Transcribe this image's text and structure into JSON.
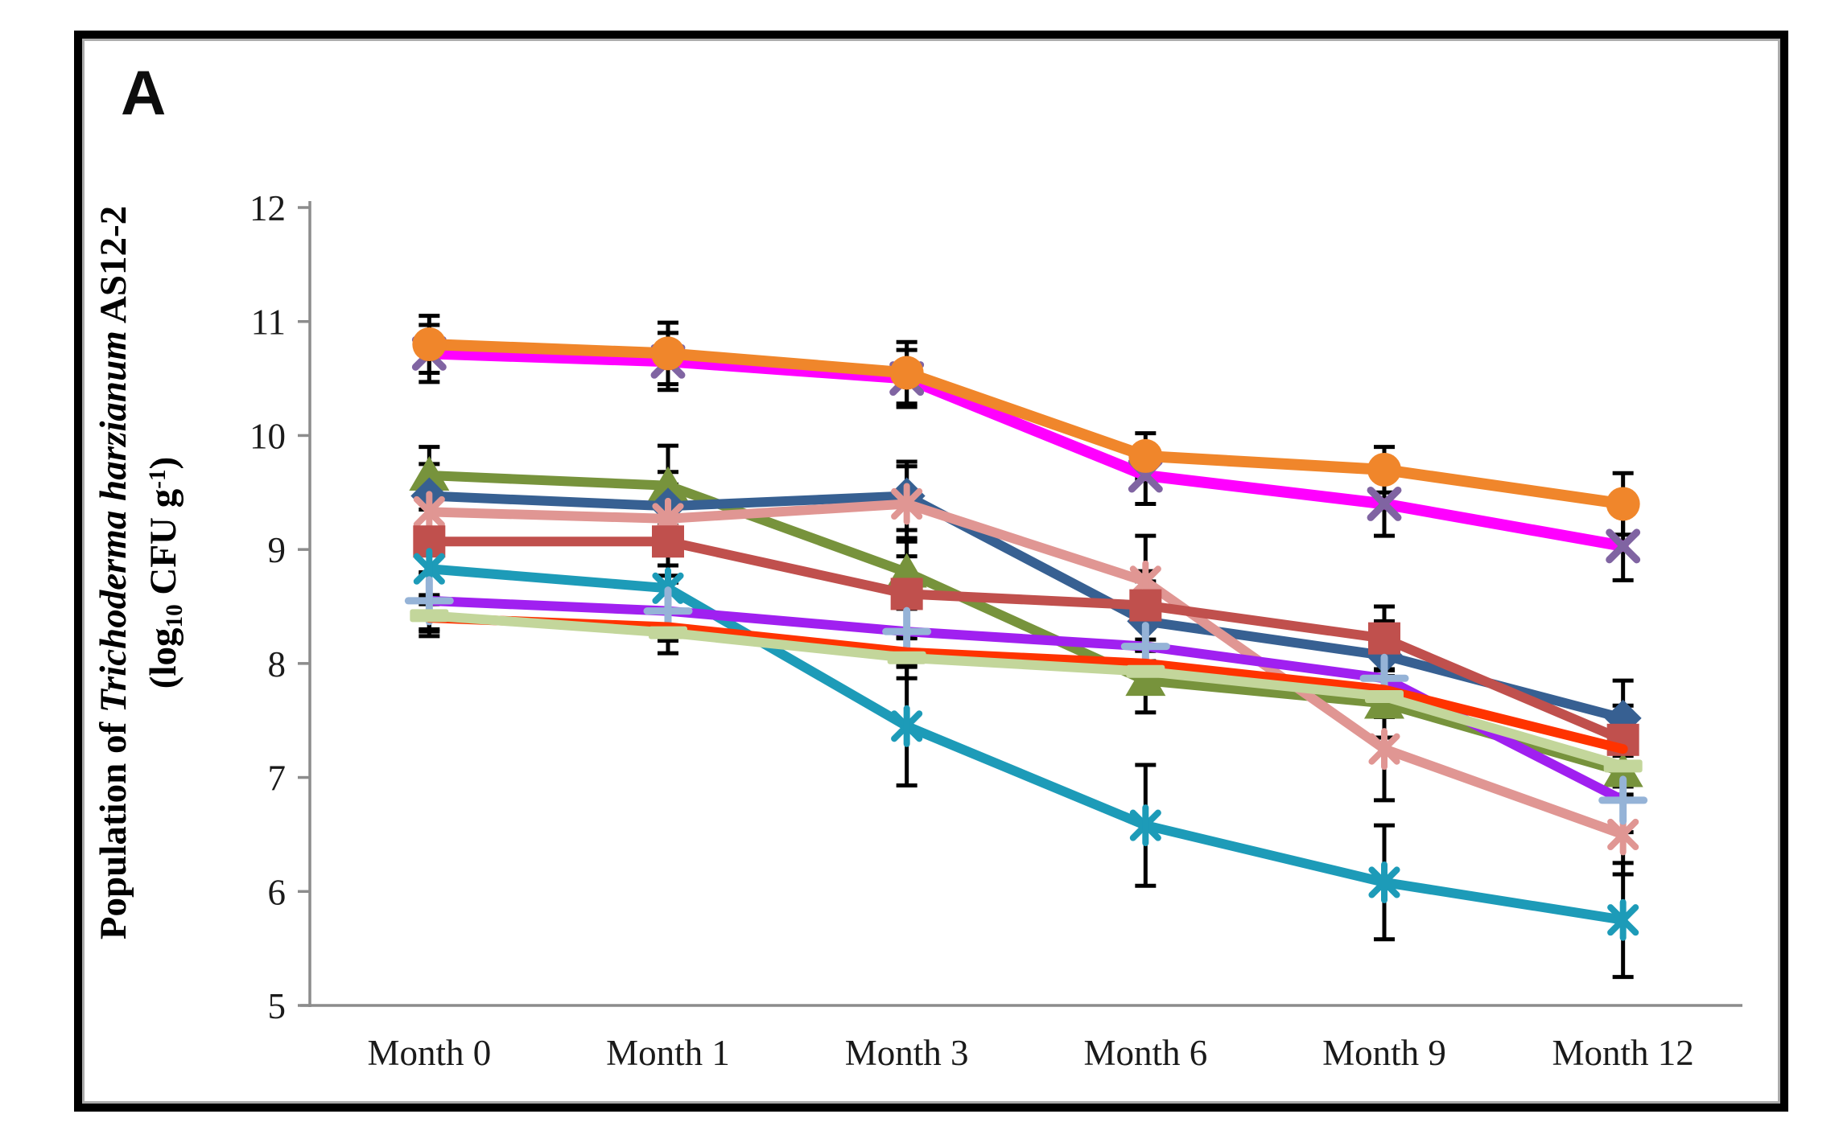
{
  "figure": {
    "panel_label": "A",
    "y_axis": {
      "title_line1_prefix": "Population of ",
      "title_line1_italic": "Trichoderma harzianum",
      "title_line1_suffix": " AS12-2",
      "title_line2": {
        "pre": "(log",
        "sub": "10",
        "mid": " CFU g",
        "sup": "-1",
        "post": ")"
      },
      "min": 5,
      "max": 12
    },
    "x_axis": {
      "categories": [
        "Month 0",
        "Month 1",
        "Month 3",
        "Month 6",
        "Month 9",
        "Month 12"
      ]
    },
    "colors": {
      "axis": "#8C8C8C",
      "error_bar": "#000000",
      "frame": "#000000"
    }
  },
  "chart_data": {
    "type": "line",
    "title": "",
    "xlabel": "",
    "ylabel": "Population of Trichoderma harzianum AS12-2 (log10 CFU g-1)",
    "categories": [
      "Month 0",
      "Month 1",
      "Month 3",
      "Month 6",
      "Month 9",
      "Month 12"
    ],
    "ylim": [
      5,
      12
    ],
    "yticks": [
      5,
      6,
      7,
      8,
      9,
      10,
      11,
      12
    ],
    "grid": false,
    "legend": "none",
    "error_bars": true,
    "series": [
      {
        "name": "orange-circle",
        "color": "#F0862B",
        "marker": "circle",
        "marker_color": "#F0862B",
        "values": [
          10.8,
          10.72,
          10.55,
          9.82,
          9.7,
          9.4
        ],
        "err": [
          0.25,
          0.27,
          0.27,
          0.2,
          0.2,
          0.27
        ]
      },
      {
        "name": "magenta-x",
        "color": "#FF00FF",
        "marker": "x",
        "marker_color": "#8064A2",
        "values": [
          10.72,
          10.65,
          10.5,
          9.65,
          9.4,
          9.03
        ],
        "err": [
          0.25,
          0.25,
          0.25,
          0.25,
          0.28,
          0.3
        ]
      },
      {
        "name": "green-triangle",
        "color": "#77933C",
        "marker": "triangle",
        "marker_color": "#77933C",
        "values": [
          9.65,
          9.56,
          8.8,
          7.85,
          7.65,
          7.05
        ],
        "err": [
          0.25,
          0.35,
          0.3,
          0.28,
          0.3,
          0.25
        ]
      },
      {
        "name": "blue-diamond",
        "color": "#376092",
        "marker": "diamond",
        "marker_color": "#376092",
        "values": [
          9.47,
          9.38,
          9.47,
          8.37,
          8.07,
          7.52
        ],
        "err": [
          0.28,
          0.3,
          0.3,
          0.35,
          0.3,
          0.33
        ]
      },
      {
        "name": "pink-asterisk",
        "color": "#E09693",
        "marker": "asterisk",
        "marker_color": "#E09693",
        "values": [
          9.33,
          9.27,
          9.4,
          8.72,
          7.25,
          6.5
        ],
        "err": [
          0.28,
          0.3,
          0.33,
          0.4,
          0.45,
          0.35
        ]
      },
      {
        "name": "brick-square",
        "color": "#C0504D",
        "marker": "square",
        "marker_color": "#C0504D",
        "values": [
          9.07,
          9.07,
          8.61,
          8.51,
          8.22,
          7.33
        ],
        "err": [
          0.28,
          0.3,
          0.33,
          0.3,
          0.28,
          0.3
        ]
      },
      {
        "name": "teal-asterisk",
        "color": "#1D9BB8",
        "marker": "asterisk",
        "marker_color": "#1D9BB8",
        "values": [
          8.83,
          8.66,
          7.45,
          6.58,
          6.08,
          5.75
        ],
        "err": [
          0.25,
          0.2,
          0.52,
          0.53,
          0.5,
          0.5
        ]
      },
      {
        "name": "violet-plus",
        "color": "#A020F0",
        "marker": "plus",
        "marker_color": "#95B3D7",
        "values": [
          8.55,
          8.46,
          8.28,
          8.15,
          7.87,
          6.8
        ],
        "err": [
          0.25,
          0.25,
          0.2,
          0.22,
          0.25,
          0.28
        ]
      },
      {
        "name": "red-plain",
        "color": "#FF3300",
        "marker": "none",
        "marker_color": "#FF3300",
        "values": [
          8.4,
          8.32,
          8.1,
          8.0,
          7.77,
          7.25
        ],
        "err": [
          0.12,
          0.12,
          0.12,
          0.12,
          0.12,
          0.15
        ]
      },
      {
        "name": "lightgreen-dash",
        "color": "#C3D69B",
        "marker": "dash",
        "marker_color": "#C3D69B",
        "values": [
          8.42,
          8.27,
          8.05,
          7.93,
          7.71,
          7.1
        ],
        "err": [
          0.18,
          0.18,
          0.18,
          0.18,
          0.18,
          0.18
        ]
      }
    ],
    "z_order": [
      "green-triangle",
      "blue-diamond",
      "pink-asterisk",
      "brick-square",
      "teal-asterisk",
      "violet-plus",
      "red-plain",
      "lightgreen-dash",
      "magenta-x",
      "orange-circle"
    ]
  }
}
